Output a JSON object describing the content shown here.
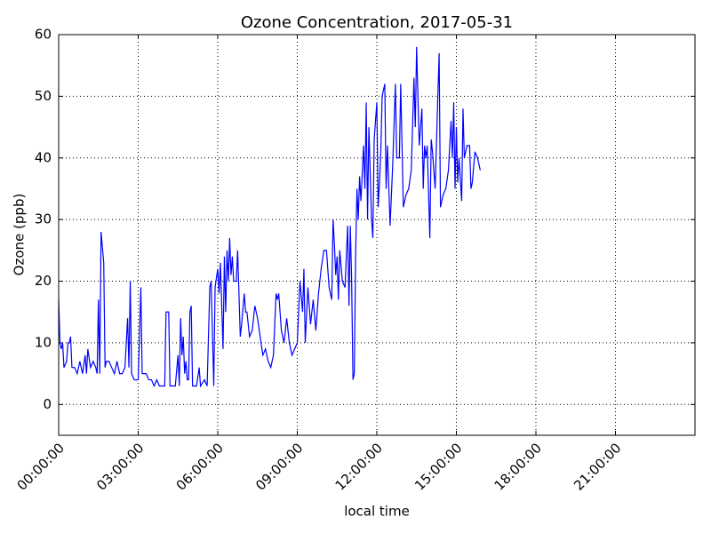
{
  "chart_data": {
    "type": "line",
    "title": "Ozone Concentration, 2017-05-31",
    "x_label": "local time",
    "y_label": "Ozone (ppb)",
    "color": "#0000ff",
    "grid": true,
    "xlim": [
      0,
      24
    ],
    "xticks": [
      {
        "value": 0,
        "label": "00:00:00"
      },
      {
        "value": 3,
        "label": "03:00:00"
      },
      {
        "value": 6,
        "label": "06:00:00"
      },
      {
        "value": 9,
        "label": "09:00:00"
      },
      {
        "value": 12,
        "label": "12:00:00"
      },
      {
        "value": 15,
        "label": "15:00:00"
      },
      {
        "value": 18,
        "label": "18:00:00"
      },
      {
        "value": 21,
        "label": "21:00:00"
      }
    ],
    "ylim": [
      -5,
      60
    ],
    "yticks": [
      0,
      10,
      20,
      30,
      40,
      50,
      60
    ],
    "x": [
      0.0,
      0.05,
      0.1,
      0.15,
      0.2,
      0.3,
      0.35,
      0.4,
      0.45,
      0.5,
      0.6,
      0.7,
      0.8,
      0.9,
      1.0,
      1.05,
      1.1,
      1.2,
      1.3,
      1.4,
      1.45,
      1.5,
      1.55,
      1.6,
      1.7,
      1.75,
      1.8,
      1.9,
      2.0,
      2.1,
      2.2,
      2.3,
      2.4,
      2.5,
      2.6,
      2.65,
      2.7,
      2.75,
      2.85,
      3.0,
      3.1,
      3.15,
      3.3,
      3.4,
      3.5,
      3.6,
      3.7,
      3.8,
      3.9,
      4.0,
      4.05,
      4.15,
      4.2,
      4.3,
      4.4,
      4.5,
      4.55,
      4.6,
      4.65,
      4.7,
      4.75,
      4.8,
      4.85,
      4.9,
      4.95,
      5.0,
      5.05,
      5.2,
      5.3,
      5.35,
      5.5,
      5.6,
      5.7,
      5.75,
      5.85,
      5.9,
      6.0,
      6.05,
      6.1,
      6.2,
      6.25,
      6.3,
      6.35,
      6.4,
      6.45,
      6.5,
      6.55,
      6.6,
      6.7,
      6.75,
      6.85,
      6.9,
      7.0,
      7.05,
      7.1,
      7.2,
      7.3,
      7.4,
      7.5,
      7.6,
      7.7,
      7.8,
      7.9,
      8.0,
      8.1,
      8.2,
      8.25,
      8.3,
      8.4,
      8.5,
      8.6,
      8.7,
      8.8,
      8.9,
      9.0,
      9.1,
      9.2,
      9.25,
      9.3,
      9.4,
      9.5,
      9.6,
      9.7,
      9.8,
      9.9,
      10.0,
      10.1,
      10.2,
      10.3,
      10.35,
      10.4,
      10.45,
      10.5,
      10.55,
      10.6,
      10.7,
      10.8,
      10.9,
      10.95,
      11.0,
      11.05,
      11.1,
      11.15,
      11.2,
      11.25,
      11.3,
      11.35,
      11.4,
      11.5,
      11.55,
      11.6,
      11.65,
      11.7,
      11.8,
      11.85,
      11.9,
      12.0,
      12.05,
      12.1,
      12.15,
      12.2,
      12.3,
      12.35,
      12.4,
      12.5,
      12.6,
      12.7,
      12.75,
      12.85,
      12.9,
      13.0,
      13.1,
      13.2,
      13.3,
      13.4,
      13.45,
      13.5,
      13.6,
      13.7,
      13.75,
      13.8,
      13.85,
      13.9,
      14.0,
      14.05,
      14.1,
      14.2,
      14.3,
      14.35,
      14.4,
      14.5,
      14.6,
      14.7,
      14.8,
      14.85,
      14.9,
      14.95,
      15.0,
      15.05,
      15.1,
      15.2,
      15.25,
      15.3,
      15.4,
      15.5,
      15.55,
      15.6,
      15.7,
      15.8,
      15.9
    ],
    "values": [
      17,
      10,
      9,
      10,
      6,
      7,
      10,
      10,
      11,
      6,
      6,
      5,
      7,
      5,
      8,
      5,
      9,
      6,
      7,
      6,
      5,
      17,
      5,
      28,
      23,
      6,
      7,
      7,
      6,
      5,
      7,
      5,
      5,
      6,
      14,
      6,
      20,
      5,
      4,
      4,
      19,
      5,
      5,
      4,
      4,
      3,
      4,
      3,
      3,
      3,
      15,
      15,
      3,
      3,
      3,
      8,
      3,
      14,
      8,
      11,
      5,
      7,
      4,
      4,
      15,
      16,
      3,
      3,
      6,
      3,
      4,
      3,
      19,
      20,
      3,
      19,
      22,
      18,
      23,
      9,
      24,
      15,
      25,
      20,
      27,
      21,
      24,
      20,
      20,
      25,
      11,
      13,
      18,
      15,
      15,
      11,
      12,
      16,
      14,
      11,
      8,
      9,
      7,
      6,
      8,
      18,
      17,
      18,
      12,
      10,
      14,
      10,
      8,
      9,
      10,
      20,
      15,
      22,
      10,
      19,
      13,
      17,
      12,
      18,
      22,
      25,
      25,
      19,
      17,
      30,
      26,
      21,
      24,
      17,
      25,
      20,
      19,
      29,
      16,
      29,
      20,
      4,
      5,
      24,
      35,
      30,
      37,
      33,
      42,
      35,
      49,
      30,
      45,
      30,
      27,
      43,
      49,
      32,
      36,
      41,
      50,
      52,
      35,
      42,
      29,
      39,
      52,
      40,
      40,
      52,
      32,
      34,
      35,
      38,
      53,
      45,
      58,
      42,
      48,
      35,
      42,
      40,
      42,
      27,
      43,
      41,
      35,
      50,
      57,
      32,
      34,
      35,
      38,
      46,
      40,
      49,
      35,
      45,
      36,
      40,
      33,
      48,
      40,
      42,
      42,
      35,
      36,
      41,
      40,
      38
    ]
  }
}
